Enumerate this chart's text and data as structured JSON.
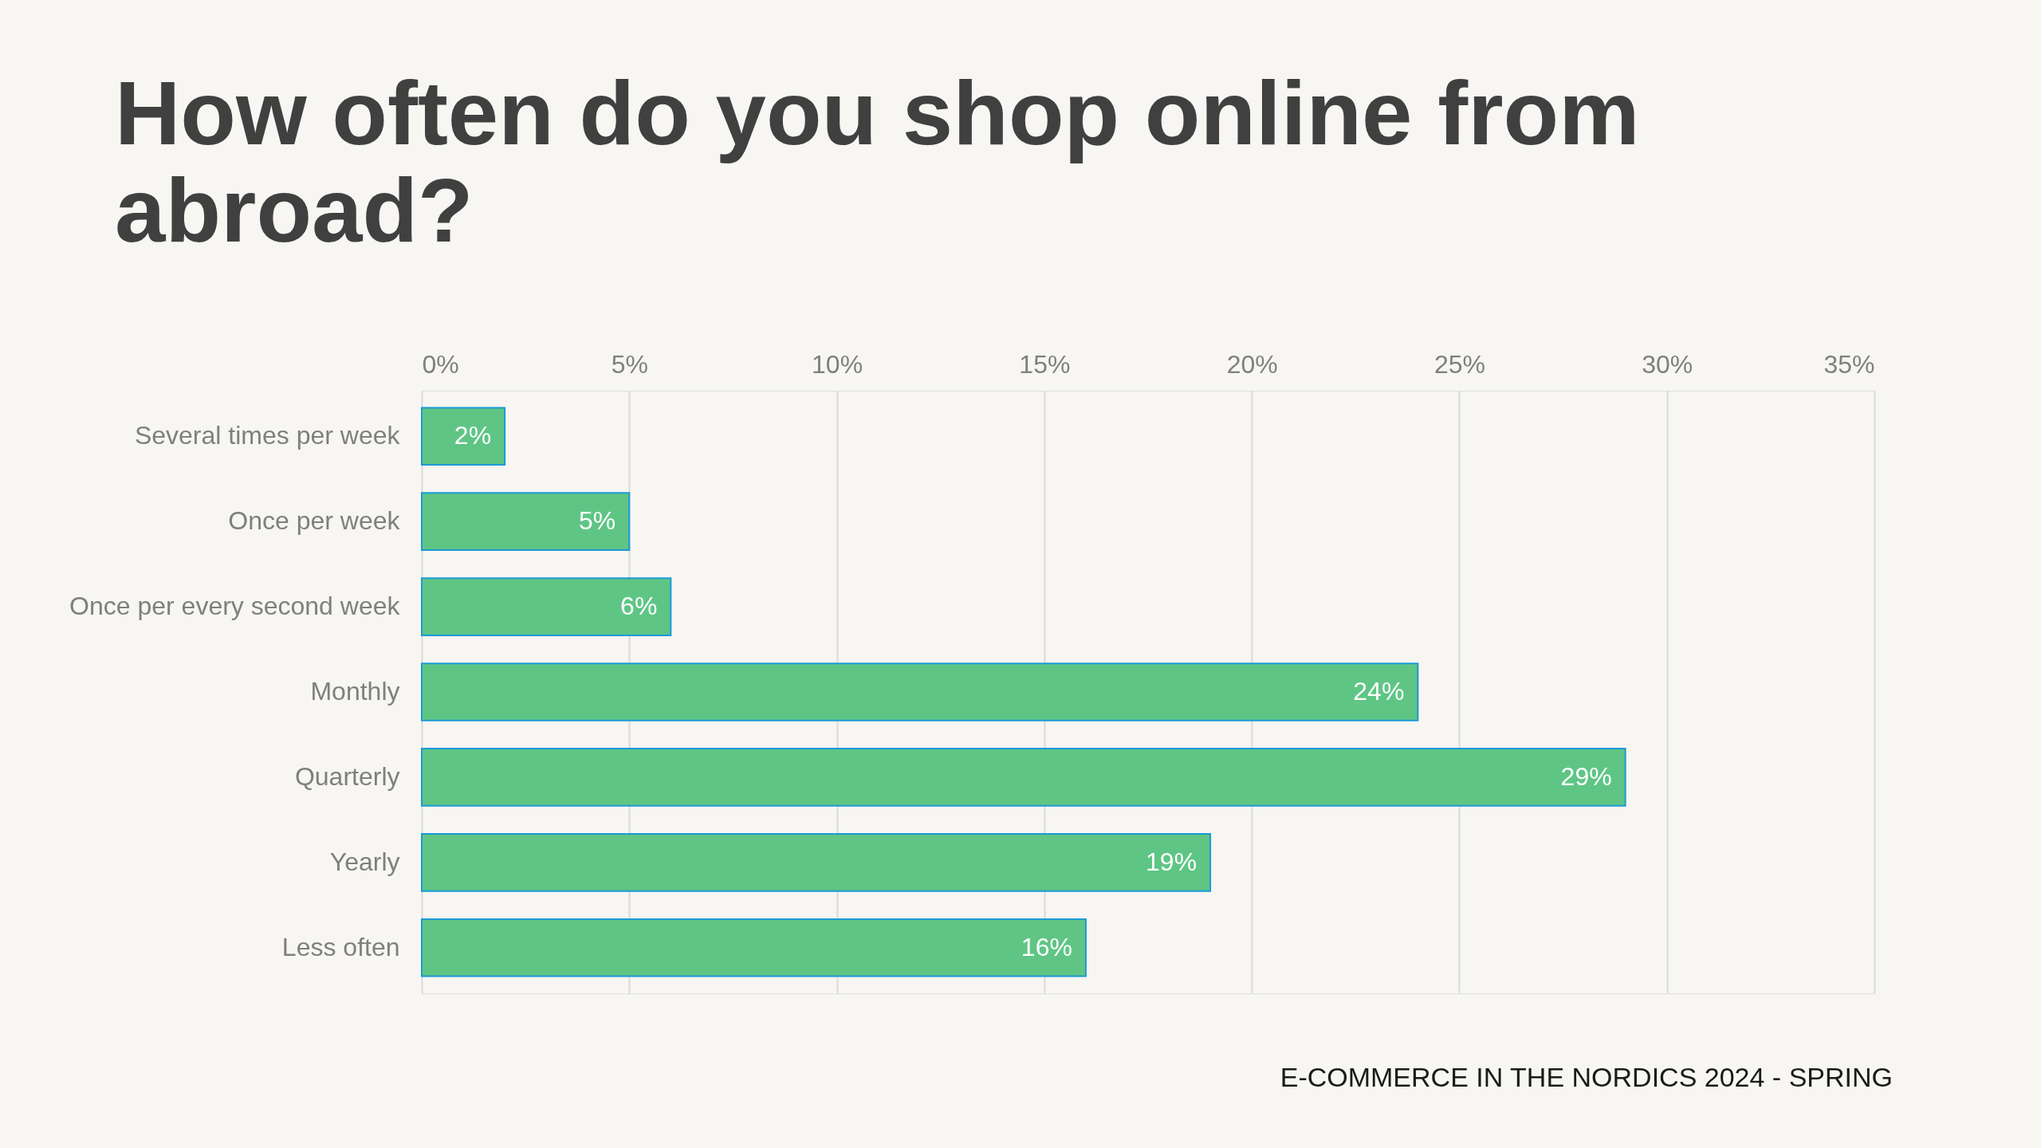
{
  "chart_data": {
    "type": "bar",
    "orientation": "horizontal",
    "title": "How often do you shop online from abroad?",
    "categories": [
      "Several times per week",
      "Once per week",
      "Once per every second week",
      "Monthly",
      "Quarterly",
      "Yearly",
      "Less often"
    ],
    "values": [
      2,
      5,
      6,
      24,
      29,
      19,
      16
    ],
    "value_labels": [
      "2%",
      "5%",
      "6%",
      "24%",
      "29%",
      "19%",
      "16%"
    ],
    "color": "#5fc585",
    "xlim": [
      0,
      35
    ],
    "xticks": [
      {
        "value": 0,
        "label": "0%"
      },
      {
        "value": 5,
        "label": "5%"
      },
      {
        "value": 10,
        "label": "10%"
      },
      {
        "value": 15,
        "label": "15%"
      },
      {
        "value": 20,
        "label": "20%"
      },
      {
        "value": 25,
        "label": "25%"
      },
      {
        "value": 30,
        "label": "30%"
      },
      {
        "value": 35,
        "label": "35%"
      }
    ],
    "grid": "x",
    "annotations": [
      "E-COMMERCE IN THE NORDICS 2024 - SPRING"
    ]
  }
}
